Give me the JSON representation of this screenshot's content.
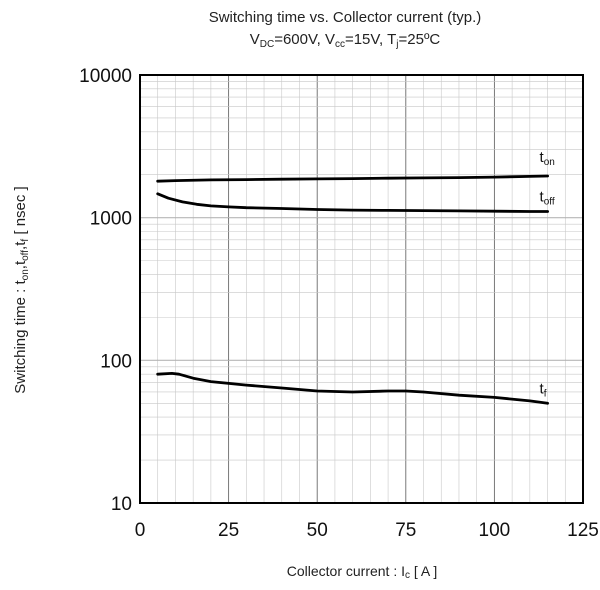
{
  "chart_data": {
    "type": "line",
    "title_line1": "Switching time vs. Collector current (typ.)",
    "title_line2": {
      "vdc_main": "V",
      "vdc_sub": "DC",
      "vdc_val": "=600V, ",
      "vcc_main": "V",
      "vcc_sub": "cc",
      "vcc_val": "=15V, ",
      "tj_main": "T",
      "tj_sub": "j",
      "tj_val": "=25ºC"
    },
    "xlabel": {
      "main": "Collector current  :  I",
      "sub": "c",
      "tail": " [ A ]"
    },
    "ylabel": {
      "p1": "Switching time : t",
      "s1": "on",
      "p2": ",t",
      "s2": "off",
      "p3": ",t",
      "s3": "f",
      "p4": " [ nsec ]"
    },
    "x_ticks": [
      "0",
      "25",
      "50",
      "75",
      "100",
      "125"
    ],
    "y_ticks": [
      "10",
      "100",
      "1000",
      "10000"
    ],
    "xlim": [
      0,
      125
    ],
    "ylim": [
      10,
      10000
    ],
    "yscale": "log",
    "grid": true,
    "series": [
      {
        "label_main": "t",
        "label_sub": "on",
        "x": [
          5,
          10,
          20,
          30,
          40,
          50,
          60,
          70,
          80,
          90,
          100,
          110,
          115
        ],
        "y": [
          1800,
          1820,
          1840,
          1850,
          1860,
          1870,
          1880,
          1890,
          1900,
          1910,
          1925,
          1945,
          1960
        ]
      },
      {
        "label_main": "t",
        "label_sub": "off",
        "x": [
          5,
          8,
          12,
          16,
          20,
          25,
          30,
          40,
          50,
          60,
          70,
          80,
          90,
          100,
          110,
          115
        ],
        "y": [
          1470,
          1370,
          1290,
          1240,
          1210,
          1190,
          1175,
          1160,
          1140,
          1130,
          1125,
          1120,
          1115,
          1110,
          1105,
          1105
        ]
      },
      {
        "label_main": "t",
        "label_sub": "f",
        "x": [
          5,
          9,
          11,
          15,
          20,
          30,
          40,
          50,
          60,
          70,
          75,
          80,
          90,
          100,
          110,
          115
        ],
        "y": [
          80,
          81,
          80,
          75,
          71,
          67,
          64,
          61,
          60,
          61,
          61,
          60,
          57,
          55,
          52,
          50
        ]
      }
    ]
  }
}
